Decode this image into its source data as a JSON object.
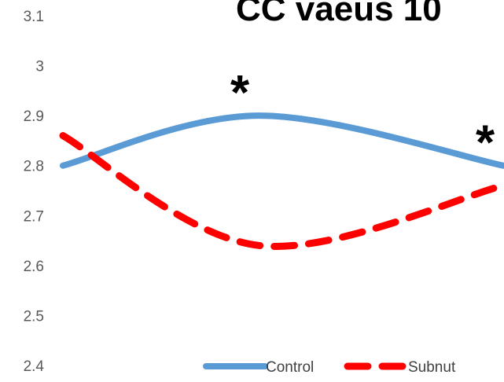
{
  "chart_data": {
    "type": "line",
    "title": "CC vaeus 10",
    "xlabel": "",
    "ylabel": "",
    "ylim": [
      2.4,
      3.1
    ],
    "y_ticks": [
      "3.1",
      "3",
      "2.9",
      "2.8",
      "2.7",
      "2.6",
      "2.5",
      "2.4"
    ],
    "x": [
      1,
      2,
      3
    ],
    "series": [
      {
        "name": "Control",
        "values": [
          2.8,
          2.9,
          2.8
        ],
        "color": "#5B9BD5",
        "style": "solid"
      },
      {
        "name": "Subnut",
        "values": [
          2.86,
          2.64,
          2.76
        ],
        "color": "#FF0000",
        "style": "dashed"
      }
    ],
    "annotations": [
      {
        "text": "*",
        "x": 2,
        "y": 2.9
      },
      {
        "text": "*",
        "x": 3,
        "y": 2.8
      }
    ],
    "legend": {
      "placement": "bottom",
      "entries": [
        "Control",
        "Subnut"
      ]
    },
    "grid": false
  }
}
